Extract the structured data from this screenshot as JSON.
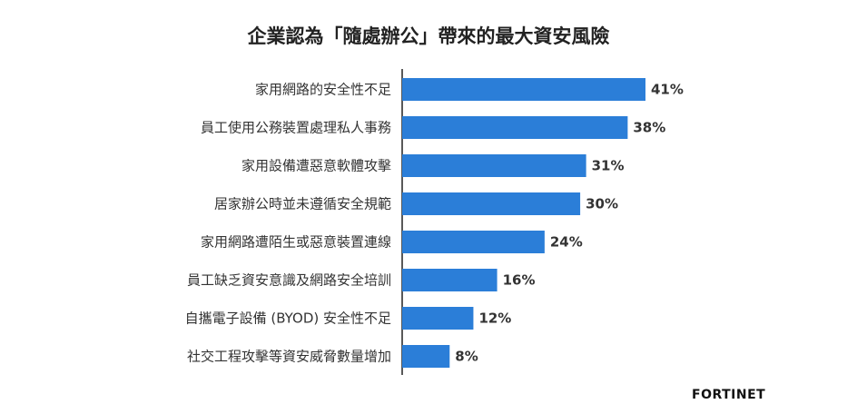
{
  "chart_data": {
    "type": "bar",
    "orientation": "horizontal",
    "title": "企業認為「隨處辦公」帶來的最大資安風險",
    "categories": [
      "家用網路的安全性不足",
      "員工使用公務裝置處理私人事務",
      "家用設備遭惡意軟體攻擊",
      "居家辦公時並未遵循安全規範",
      "家用網路遭陌生或惡意裝置連線",
      "員工缺乏資安意識及網路安全培訓",
      "自攜電子設備 (BYOD) 安全性不足",
      "社交工程攻擊等資安威脅數量增加"
    ],
    "values": [
      41,
      38,
      31,
      30,
      24,
      16,
      12,
      8
    ],
    "value_labels": [
      "41%",
      "38%",
      "31%",
      "30%",
      "24%",
      "16%",
      "12%",
      "8%"
    ],
    "unit": "%",
    "bar_color": "#2b7ed8",
    "grid": false,
    "legend": "none"
  },
  "brand": {
    "logo_text": "FORTINET"
  }
}
